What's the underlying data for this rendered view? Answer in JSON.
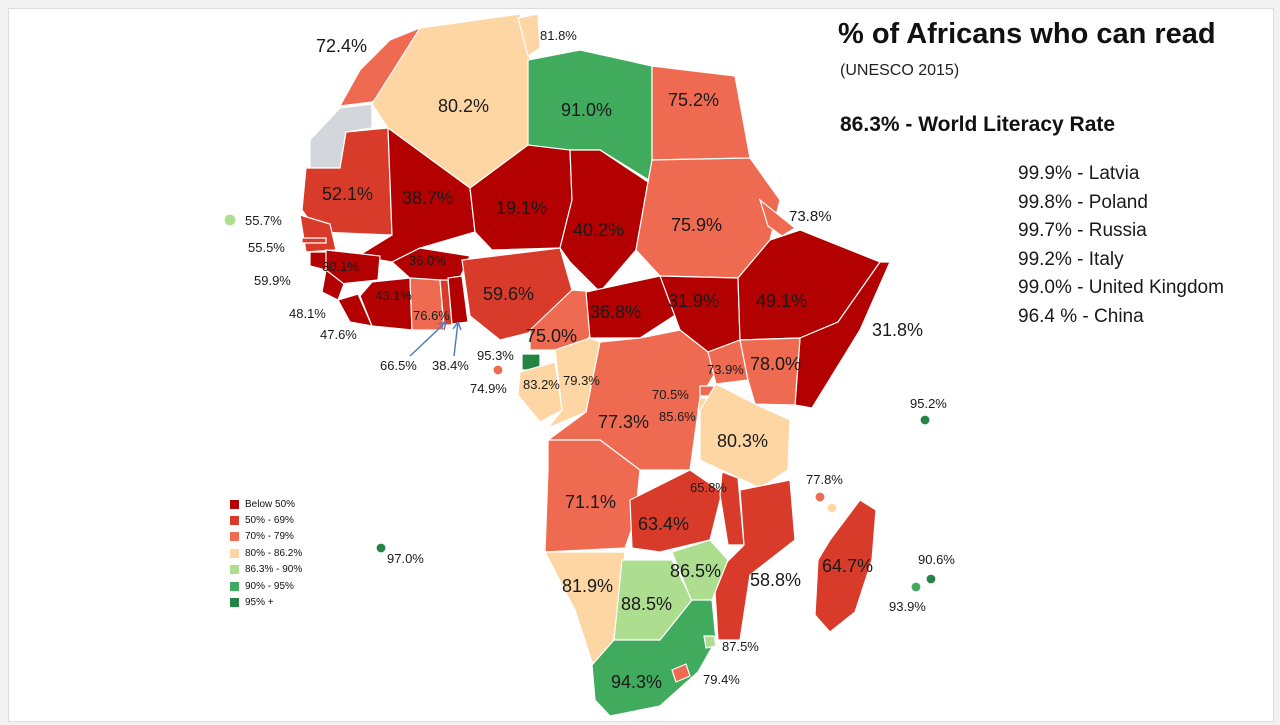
{
  "title": "% of Africans who can read",
  "subtitle": "(UNESCO 2015)",
  "world_rate": "86.3% - World Literacy Rate",
  "comparisons": [
    "99.9% - Latvia",
    "99.8% - Poland",
    "99.7% - Russia",
    "99.2% - Italy",
    "99.0% - United Kingdom",
    "96.4 % - China"
  ],
  "legend": [
    {
      "label": "Below 50%",
      "color": "#b30000"
    },
    {
      "label": "50% - 69%",
      "color": "#d93b2b"
    },
    {
      "label": "70% - 79%",
      "color": "#ee6a50"
    },
    {
      "label": "80% - 86.2%",
      "color": "#fdd6a4"
    },
    {
      "label": "86.3% - 90%",
      "color": "#addd8e"
    },
    {
      "label": "90% - 95%",
      "color": "#41ab5d"
    },
    {
      "label": "95% +",
      "color": "#238443"
    }
  ],
  "colors": {
    "below_50": "#b30000",
    "r50_69": "#d93b2b",
    "r70_79": "#ee6a50",
    "r80_86": "#fdd6a4",
    "r86_90": "#addd8e",
    "r90_95": "#41ab5d",
    "r95_plus": "#238443",
    "no_data": "#d3d7dc"
  },
  "labels": {
    "morocco": "72.4%",
    "algeria": "80.2%",
    "tunisia": "81.8%",
    "libya": "91.0%",
    "egypt": "75.2%",
    "mauritania": "52.1%",
    "mali": "38.7%",
    "niger": "19.1%",
    "chad": "40.2%",
    "sudan": "75.9%",
    "eritrea": "73.8%",
    "cape_verde": "55.7%",
    "senegal": "55.5%",
    "gambia": "59.9%",
    "guinea": "30.1%",
    "burkina": "36.0%",
    "cote_divoire": "43.1%",
    "guinea_bissau": "48.1%",
    "sierra_leone": "47.6%",
    "ghana": "76.6%",
    "togo": "66.5%",
    "benin": "38.4%",
    "nigeria": "59.6%",
    "cameroon": "75.0%",
    "car": "36.8%",
    "south_sudan": "31.9%",
    "ethiopia": "49.1%",
    "somalia": "31.8%",
    "eq_guinea": "95.3%",
    "sao_tome": "74.9%",
    "gabon": "83.2%",
    "congo": "79.3%",
    "uganda": "73.9%",
    "rwanda": "70.5%",
    "burundi": "85.6%",
    "kenya": "78.0%",
    "drc": "77.3%",
    "tanzania": "80.3%",
    "seychelles": "95.2%",
    "angola": "71.1%",
    "malawi": "65.8%",
    "zambia": "63.4%",
    "comoros": "77.8%",
    "madagascar": "64.7%",
    "mozambique": "58.8%",
    "st_helena": "97.0%",
    "namibia": "81.9%",
    "botswana": "88.5%",
    "zimbabwe": "86.5%",
    "mauritius": "90.6%",
    "reunion": "93.9%",
    "swaziland": "87.5%",
    "south_africa": "94.3%",
    "lesotho": "79.4%"
  }
}
